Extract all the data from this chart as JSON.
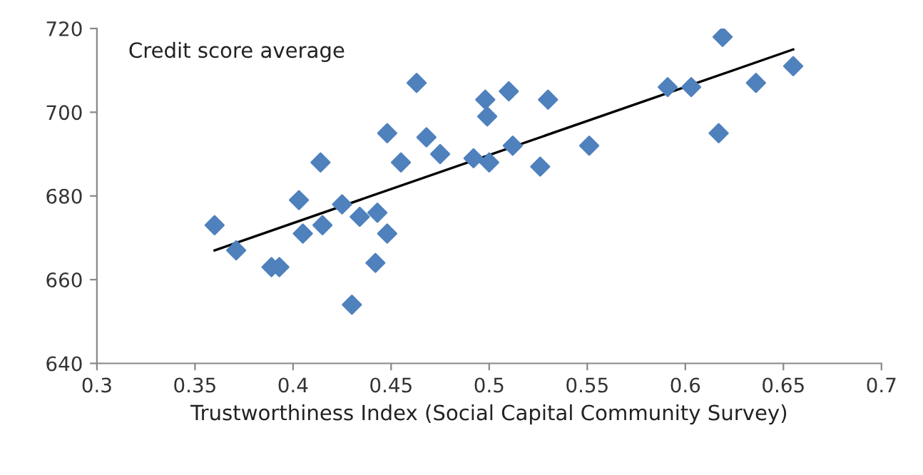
{
  "chart_data": {
    "type": "scatter",
    "ylabel": "Credit score average",
    "xlabel": "Trustworthiness Index (Social Capital Community Survey)",
    "xlim": [
      0.3,
      0.7
    ],
    "xticks": [
      0.3,
      0.35,
      0.4,
      0.45,
      0.5,
      0.55,
      0.6,
      0.65,
      0.7
    ],
    "ylim": [
      640,
      720
    ],
    "yticks": [
      640,
      660,
      680,
      700,
      720
    ],
    "grid": false,
    "series": [
      {
        "marker": "diamond",
        "color": "#4f81bd",
        "x": [
          0.36,
          0.371,
          0.389,
          0.393,
          0.403,
          0.405,
          0.414,
          0.415,
          0.425,
          0.43,
          0.434,
          0.442,
          0.443,
          0.448,
          0.448,
          0.455,
          0.463,
          0.468,
          0.475,
          0.492,
          0.498,
          0.499,
          0.5,
          0.51,
          0.512,
          0.526,
          0.53,
          0.551,
          0.591,
          0.603,
          0.617,
          0.619,
          0.636,
          0.655
        ],
        "values": [
          673,
          667,
          663,
          663,
          679,
          671,
          688,
          673,
          678,
          654,
          675,
          664,
          676,
          671,
          695,
          688,
          707,
          694,
          690,
          689,
          703,
          699,
          688,
          705,
          692,
          687,
          703,
          692,
          706,
          706,
          695,
          718,
          707,
          711
        ]
      },
      {
        "type": "line",
        "marker": "none",
        "color": "#000000",
        "x": [
          0.36,
          0.655
        ],
        "values": [
          667,
          715
        ]
      }
    ]
  }
}
